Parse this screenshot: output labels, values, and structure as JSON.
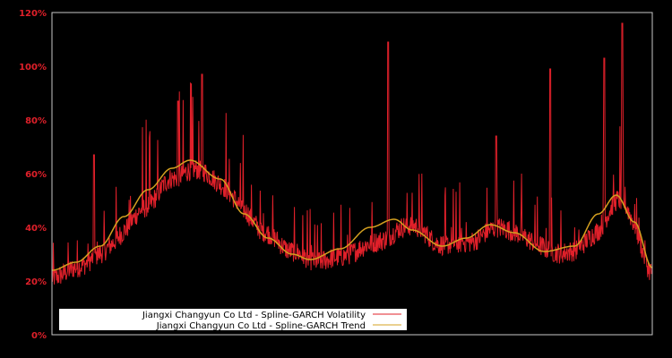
{
  "chart_data": {
    "type": "line",
    "title": "",
    "xlabel": "",
    "ylabel": "",
    "ylim": [
      0,
      120
    ],
    "y_ticks": [
      "0%",
      "20%",
      "40%",
      "60%",
      "80%",
      "100%",
      "120%"
    ],
    "y_tick_values": [
      0,
      20,
      40,
      60,
      80,
      100,
      120
    ],
    "grid": false,
    "legend_position": "lower left",
    "background": "#000000",
    "x_normalized": [
      0,
      0.05,
      0.1,
      0.15,
      0.2,
      0.25,
      0.3,
      0.35,
      0.4,
      0.45,
      0.5,
      0.55,
      0.6,
      0.65,
      0.7,
      0.75,
      0.8,
      0.85,
      0.9,
      0.95,
      1.0
    ],
    "series": [
      {
        "name": "Jiangxi Changyun Co Ltd - Spline-GARCH Volatility",
        "color": "#e0202a",
        "values": [
          19,
          24,
          30,
          42,
          55,
          60,
          52,
          40,
          32,
          26,
          27,
          30,
          42,
          34,
          33,
          40,
          36,
          29,
          32,
          50,
          22
        ],
        "peaks": [
          {
            "x": 0.07,
            "y": 67
          },
          {
            "x": 0.21,
            "y": 87
          },
          {
            "x": 0.25,
            "y": 97
          },
          {
            "x": 0.56,
            "y": 109
          },
          {
            "x": 0.74,
            "y": 74
          },
          {
            "x": 0.83,
            "y": 99
          },
          {
            "x": 0.92,
            "y": 103
          },
          {
            "x": 0.95,
            "y": 116
          }
        ]
      },
      {
        "name": "Jiangxi Changyun Co Ltd - Spline-GARCH Trend",
        "color": "#d4a020",
        "values": [
          24,
          27,
          33,
          44,
          54,
          62,
          65,
          58,
          45,
          36,
          30,
          28,
          32,
          40,
          43,
          39,
          33,
          36,
          41,
          38,
          31,
          33,
          45,
          52,
          42,
          25
        ]
      }
    ],
    "trend_x_normalized": [
      0,
      0.04,
      0.08,
      0.12,
      0.16,
      0.2,
      0.23,
      0.28,
      0.32,
      0.36,
      0.4,
      0.43,
      0.48,
      0.53,
      0.57,
      0.6,
      0.65,
      0.69,
      0.73,
      0.77,
      0.82,
      0.87,
      0.91,
      0.94,
      0.97,
      1.0
    ]
  },
  "legend": {
    "items": [
      {
        "label": "Jiangxi Changyun Co Ltd - Spline-GARCH Volatility",
        "color": "#e0202a"
      },
      {
        "label": "Jiangxi Changyun Co Ltd - Spline-GARCH Trend",
        "color": "#d4a020"
      }
    ]
  }
}
